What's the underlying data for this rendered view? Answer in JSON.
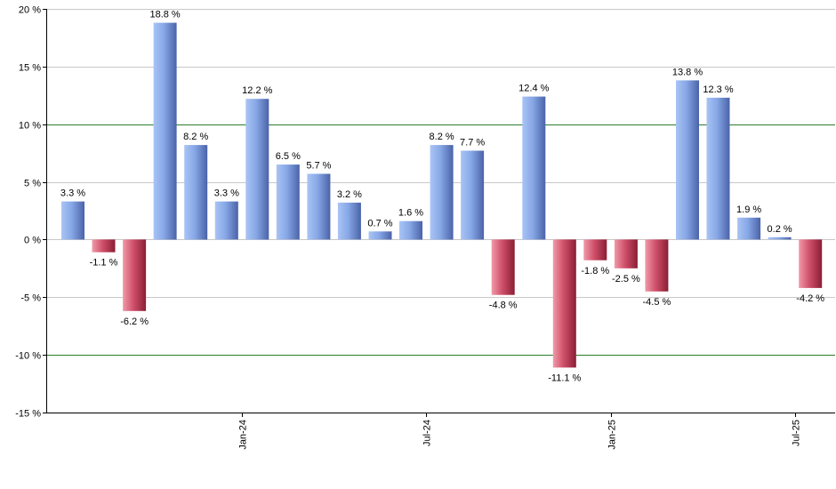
{
  "chart_data": {
    "type": "bar",
    "unit": "%",
    "values": [
      3.3,
      -1.1,
      -6.2,
      18.8,
      8.2,
      3.3,
      12.2,
      6.5,
      5.7,
      3.2,
      0.7,
      1.6,
      8.2,
      7.7,
      -4.8,
      12.4,
      -11.1,
      -1.8,
      -2.5,
      -4.5,
      13.8,
      12.3,
      1.9,
      0.2,
      -4.2
    ],
    "data_labels": [
      "3.3 %",
      "-1.1 %",
      "-6.2 %",
      "18.8 %",
      "8.2 %",
      "3.3 %",
      "12.2 %",
      "6.5 %",
      "5.7 %",
      "3.2 %",
      "0.7 %",
      "1.6 %",
      "8.2 %",
      "7.7 %",
      "-4.8 %",
      "12.4 %",
      "-11.1 %",
      "-1.8 %",
      "-2.5 %",
      "-4.5 %",
      "13.8 %",
      "12.3 %",
      "1.9 %",
      "0.2 %",
      "-4.2 %"
    ],
    "ylim": [
      -15,
      20
    ],
    "y_ticks": [
      20,
      15,
      10,
      5,
      0,
      -5,
      -10,
      -15
    ],
    "y_tick_labels": [
      "20 %",
      "15 %",
      "10 %",
      "5 %",
      "0 %",
      "-5 %",
      "-10 %",
      "-15 %"
    ],
    "reference_lines": [
      10,
      -10
    ],
    "x_tick_labels": [
      "Jan-24",
      "Jul-24",
      "Jan-25",
      "Jul-25"
    ],
    "x_tick_after_bar_index": [
      5,
      11,
      17,
      23
    ],
    "grid": true,
    "colors": {
      "positive": "#7a9ee0",
      "negative": "#c8405a",
      "gridline": "#c8c8c8",
      "reference_line": "#2e7d2e",
      "axis": "#000000"
    }
  }
}
